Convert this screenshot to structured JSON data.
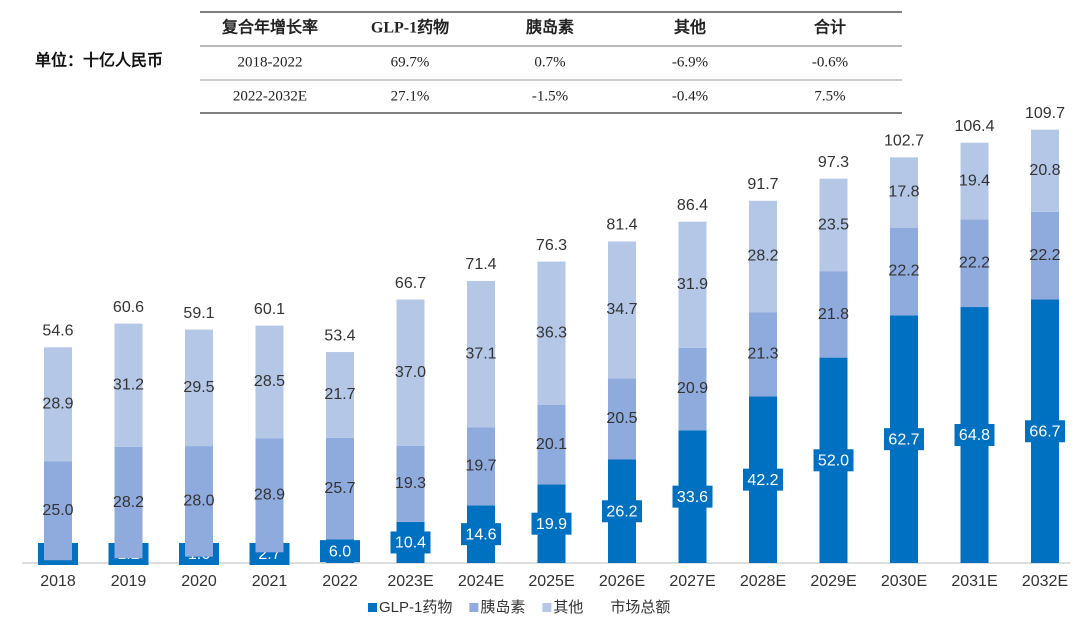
{
  "unit_label": "单位：十亿人民币",
  "table": {
    "header": [
      "复合年增长率",
      "GLP-1药物",
      "胰岛素",
      "其他",
      "合计"
    ],
    "rows": [
      [
        "2018-2022",
        "69.7%",
        "0.7%",
        "-6.9%",
        "-0.6%"
      ],
      [
        "2022-2032E",
        "27.1%",
        "-1.5%",
        "-0.4%",
        "7.5%"
      ]
    ]
  },
  "chart_data": {
    "type": "stacked_bar",
    "categories": [
      "2018",
      "2019",
      "2020",
      "2021",
      "2022",
      "2023E",
      "2024E",
      "2025E",
      "2026E",
      "2027E",
      "2028E",
      "2029E",
      "2030E",
      "2031E",
      "2032E"
    ],
    "series": [
      {
        "name": "GLP-1药物",
        "color": "#0070c0",
        "values": [
          0.7,
          1.2,
          1.6,
          2.7,
          6.0,
          10.4,
          14.6,
          19.9,
          26.2,
          33.6,
          42.2,
          52.0,
          62.7,
          64.8,
          66.7
        ],
        "value_labels": [
          "0.7",
          "1.2",
          "1.6",
          "2.7",
          "6.0",
          "10.4",
          "14.6",
          "19.9",
          "26.2",
          "33.6",
          "42.2",
          "52.0",
          "62.7",
          "64.8",
          "66.7"
        ]
      },
      {
        "name": "胰岛素",
        "color": "#8faadc",
        "values": [
          25.0,
          28.2,
          28.0,
          28.9,
          25.7,
          19.3,
          19.7,
          20.1,
          20.5,
          20.9,
          21.3,
          21.8,
          22.2,
          22.2,
          22.2
        ],
        "value_labels": [
          "25.0",
          "28.2",
          "28.0",
          "28.9",
          "25.7",
          "19.3",
          "19.7",
          "20.1",
          "20.5",
          "20.9",
          "21.3",
          "21.8",
          "22.2",
          "22.2",
          "22.2"
        ]
      },
      {
        "name": "其他",
        "color": "#b4c7e7",
        "values": [
          28.9,
          31.2,
          29.5,
          28.5,
          21.7,
          37.0,
          37.1,
          36.3,
          34.7,
          31.9,
          28.2,
          23.5,
          17.8,
          19.4,
          20.8
        ],
        "value_labels": [
          "28.9",
          "31.2",
          "29.5",
          "28.5",
          "21.7",
          "37.0",
          "37.1",
          "36.3",
          "34.7",
          "31.9",
          "28.2",
          "23.5",
          "17.8",
          "19.4",
          "20.8"
        ]
      }
    ],
    "totals": {
      "name": "市场总额",
      "values": [
        54.6,
        60.6,
        59.1,
        60.1,
        53.4,
        66.7,
        71.4,
        76.3,
        81.4,
        86.4,
        91.7,
        97.3,
        102.7,
        106.4,
        109.7
      ]
    }
  }
}
